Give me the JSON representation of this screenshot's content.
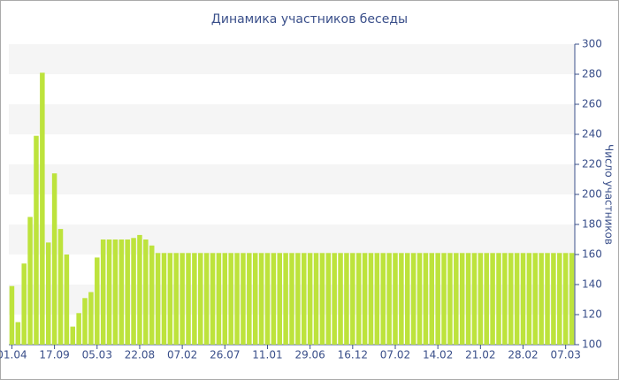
{
  "chart_data": {
    "type": "bar",
    "title": "Динамика участников беседы",
    "y_label": "Число участников",
    "categories": [
      "01.04",
      null,
      null,
      null,
      null,
      null,
      null,
      "17.09",
      null,
      null,
      null,
      null,
      null,
      null,
      "05.03",
      null,
      null,
      null,
      null,
      null,
      null,
      "22.08",
      null,
      null,
      null,
      null,
      null,
      null,
      "07.02",
      null,
      null,
      null,
      null,
      null,
      null,
      "26.07",
      null,
      null,
      null,
      null,
      null,
      null,
      "11.01",
      null,
      null,
      null,
      null,
      null,
      null,
      "29.06",
      null,
      null,
      null,
      null,
      null,
      null,
      "16.12",
      null,
      null,
      null,
      null,
      null,
      null,
      "07.02",
      null,
      null,
      null,
      null,
      null,
      null,
      "14.02",
      null,
      null,
      null,
      null,
      null,
      null,
      "21.02",
      null,
      null,
      null,
      null,
      null,
      null,
      "28.02",
      null,
      null,
      null,
      null,
      null,
      null,
      "07.03",
      null
    ],
    "values": [
      139,
      115,
      154,
      185,
      239,
      281,
      168,
      214,
      177,
      160,
      112,
      121,
      131,
      135,
      158,
      170,
      170,
      170,
      170,
      170,
      171,
      173,
      170,
      166,
      161,
      161,
      161,
      161,
      161,
      161,
      161,
      161,
      161,
      161,
      161,
      161,
      161,
      161,
      161,
      161,
      161,
      161,
      161,
      161,
      161,
      161,
      161,
      161,
      161,
      161,
      161,
      161,
      161,
      161,
      161,
      161,
      161,
      161,
      161,
      161,
      161,
      161,
      161,
      161,
      161,
      161,
      161,
      161,
      161,
      161,
      161,
      161,
      161,
      161,
      161,
      161,
      161,
      161,
      161,
      161,
      161,
      161,
      161,
      161,
      161,
      161,
      161,
      161,
      161,
      161,
      161,
      161,
      161
    ],
    "color": "#bde33c",
    "ylim": [
      100,
      300
    ],
    "yticks": [
      100,
      120,
      140,
      160,
      180,
      200,
      220,
      240,
      260,
      280,
      300
    ],
    "grid": true
  }
}
